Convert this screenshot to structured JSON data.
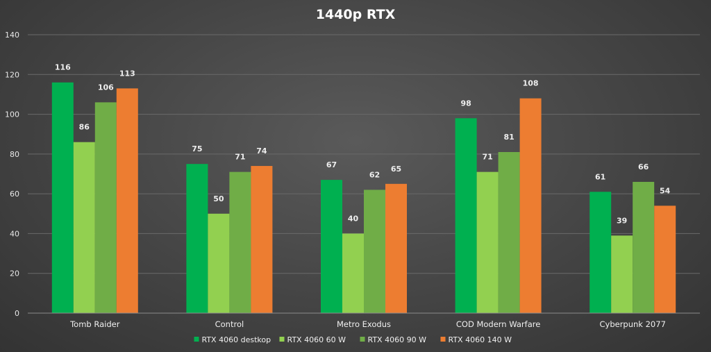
{
  "chart_data": {
    "type": "bar",
    "title": "1440p RTX",
    "xlabel": "",
    "ylabel": "",
    "categories": [
      "Tomb Raider",
      "Control",
      "Metro Exodus",
      "COD Modern Warfare",
      "Cyberpunk 2077"
    ],
    "series": [
      {
        "name": "RTX 4060 destkop",
        "color": "#00b050",
        "values": [
          116,
          75,
          67,
          98,
          61
        ]
      },
      {
        "name": "RTX 4060 60 W",
        "color": "#92d050",
        "values": [
          86,
          50,
          40,
          71,
          39
        ]
      },
      {
        "name": "RTX 4060 90 W",
        "color": "#70ad47",
        "values": [
          106,
          71,
          62,
          81,
          66
        ]
      },
      {
        "name": "RTX 4060 140 W",
        "color": "#ed7d31",
        "values": [
          113,
          74,
          65,
          108,
          54
        ]
      }
    ],
    "ylim": [
      0,
      140
    ],
    "yticks": [
      0,
      20,
      40,
      60,
      80,
      100,
      120,
      140
    ],
    "grid": true,
    "data_labels": true,
    "legend_position": "bottom"
  }
}
